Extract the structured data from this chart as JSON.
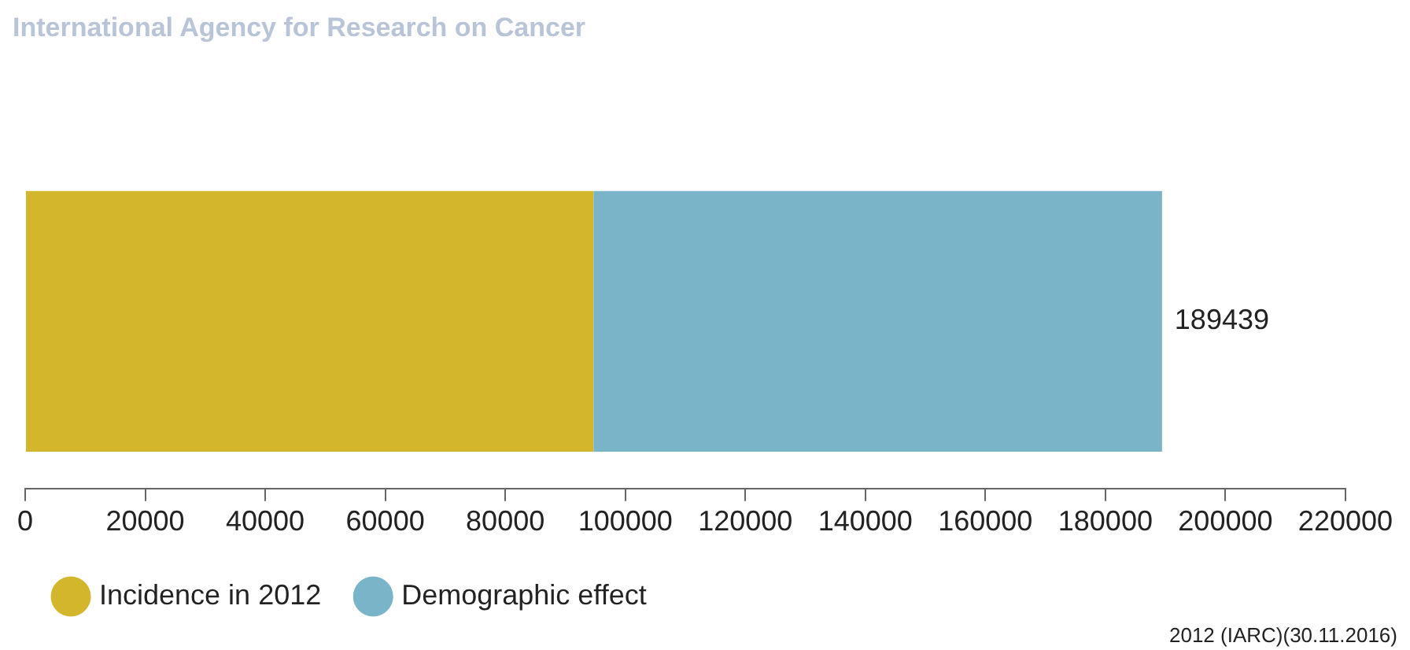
{
  "chart_data": {
    "type": "bar",
    "orientation": "horizontal",
    "stacked": true,
    "title": "International Agency for Research on Cancer",
    "categories": [
      null
    ],
    "series": [
      {
        "name": "Incidence in 2012",
        "color": "#d4b62c",
        "values": [
          94700
        ]
      },
      {
        "name": "Demographic effect",
        "color": "#7ab4c8",
        "values": [
          94739
        ]
      }
    ],
    "totals": [
      "189439"
    ],
    "xlim": [
      0,
      220000
    ],
    "xticks": [
      0,
      20000,
      40000,
      60000,
      80000,
      100000,
      120000,
      140000,
      160000,
      180000,
      200000,
      220000
    ],
    "grid": false,
    "legend": "bottom left",
    "annotations": [
      "2012 (IARC)(30.11.2016)"
    ]
  }
}
